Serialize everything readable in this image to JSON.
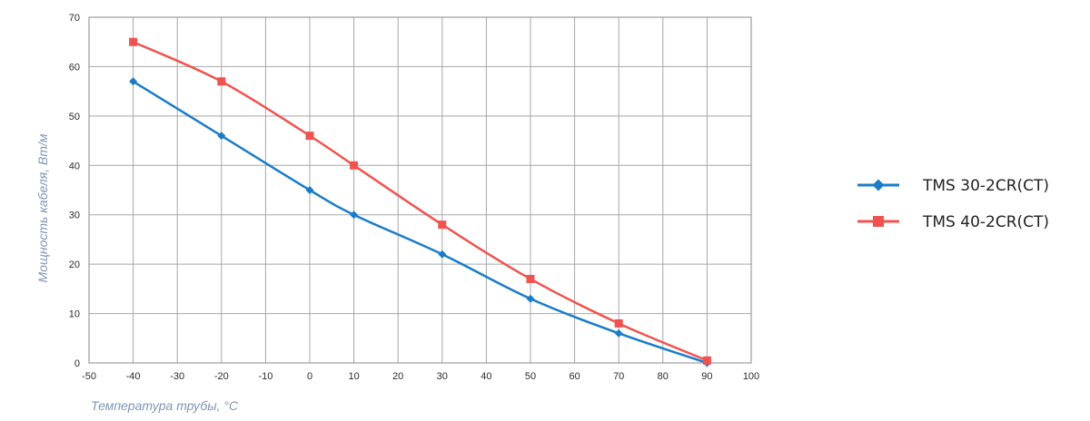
{
  "chart_data": {
    "type": "line",
    "xlabel": "Температура трубы, °C",
    "ylabel": "Мощность кабеля, Вт/м",
    "xlim": [
      -50,
      100
    ],
    "ylim": [
      0,
      70
    ],
    "x_ticks": [
      "-50",
      "-40",
      "-30",
      "-20",
      "-10",
      "0",
      "10",
      "20",
      "30",
      "40",
      "50",
      "60",
      "70",
      "80",
      "90",
      "100"
    ],
    "y_ticks": [
      "0",
      "10",
      "20",
      "30",
      "40",
      "50",
      "60",
      "70"
    ],
    "grid": true,
    "legend_position": "right",
    "series": [
      {
        "name": "TMS 30-2CR(CT)",
        "color": "#1a7cc9",
        "marker": "diamond",
        "x": [
          -40,
          -20,
          0,
          10,
          30,
          50,
          70,
          90
        ],
        "y": [
          57,
          46,
          35,
          30,
          22,
          13,
          6,
          0
        ]
      },
      {
        "name": "TMS 40-2CR(CT)",
        "color": "#f0534f",
        "marker": "square",
        "x": [
          -40,
          -20,
          0,
          10,
          30,
          50,
          70,
          90
        ],
        "y": [
          65,
          57,
          46,
          40,
          28,
          17,
          8,
          0.5
        ]
      }
    ]
  }
}
